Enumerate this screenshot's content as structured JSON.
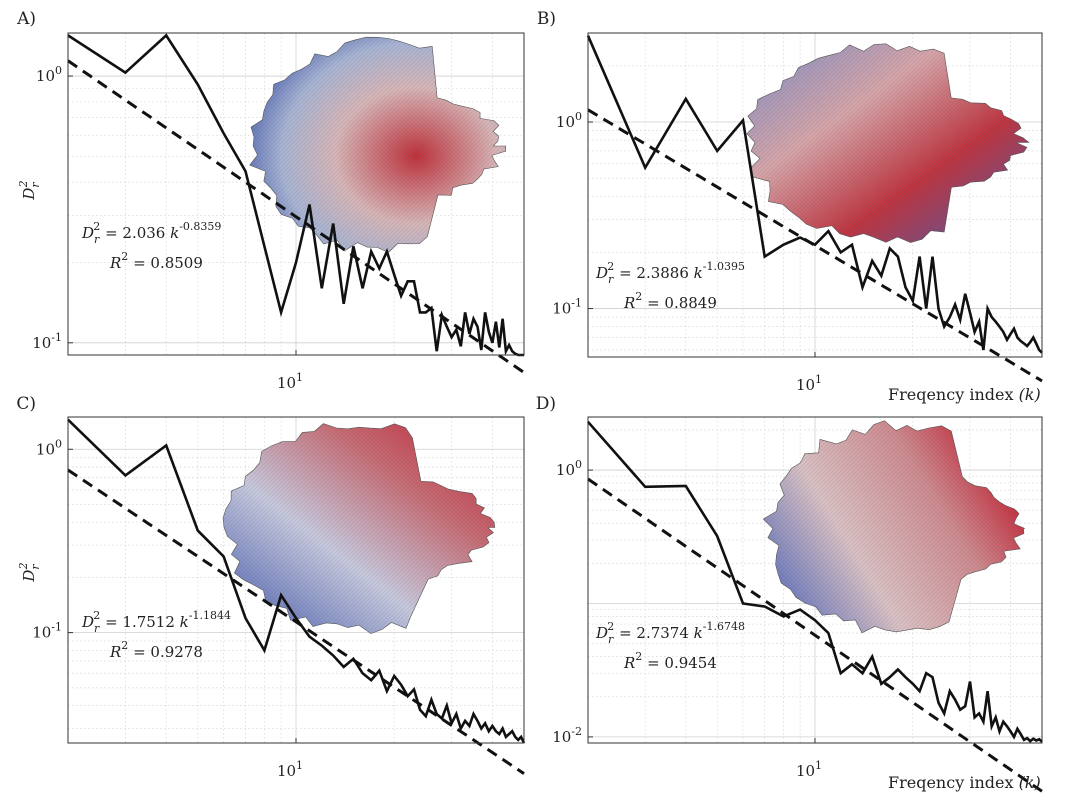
{
  "chart_data": [
    {
      "panel": "A)",
      "type": "line",
      "ylabel": "D_r^2",
      "xlabel": "",
      "xscale": "log",
      "yscale": "log",
      "xlim": [
        2,
        50
      ],
      "ylim": [
        0.09,
        1.45
      ],
      "xticks": [
        {
          "value": 10,
          "base": "10",
          "exp": "1"
        }
      ],
      "yticks": [
        {
          "value": 1,
          "base": "10",
          "exp": "0"
        },
        {
          "value": 0.1,
          "base": "10",
          "exp": "-1"
        }
      ],
      "grid": true,
      "series": [
        {
          "style": "solid",
          "x": [
            2,
            3,
            4,
            5,
            6,
            7,
            8,
            9,
            10,
            11,
            12,
            13,
            14,
            15,
            16,
            17,
            18,
            19,
            20,
            21,
            22,
            23,
            24,
            25,
            26,
            27,
            28,
            29,
            30,
            31,
            32,
            33,
            34,
            35,
            36,
            37,
            38,
            39,
            40,
            41,
            42,
            43,
            44,
            45,
            46,
            47,
            48,
            49,
            50
          ],
          "y": [
            1.42,
            1.03,
            1.42,
            0.93,
            0.61,
            0.44,
            0.23,
            0.13,
            0.2,
            0.33,
            0.16,
            0.28,
            0.14,
            0.23,
            0.16,
            0.22,
            0.19,
            0.22,
            0.18,
            0.15,
            0.17,
            0.17,
            0.13,
            0.13,
            0.135,
            0.093,
            0.127,
            0.115,
            0.105,
            0.112,
            0.097,
            0.13,
            0.108,
            0.123,
            0.115,
            0.094,
            0.13,
            0.11,
            0.1,
            0.12,
            0.096,
            0.123,
            0.093,
            0.098,
            0.093,
            0.091,
            0.088,
            0.086,
            0.09
          ]
        },
        {
          "style": "dashed",
          "fit": true,
          "a": 2.036,
          "b": -0.8359
        }
      ],
      "annotation": {
        "lhs": "D",
        "sub": "r",
        "sup": "2",
        "coef": "= 2.036",
        "var": "k",
        "exp": "-0.8359",
        "r2_label": "R",
        "r2_sup": "2",
        "r2_value": "= 0.8509"
      }
    },
    {
      "panel": "B)",
      "type": "line",
      "ylabel": "",
      "xlabel": "Freqency index",
      "xlabel_var": "(k)",
      "xscale": "log",
      "yscale": "log",
      "xlim": [
        2,
        50
      ],
      "ylim": [
        0.055,
        3.0
      ],
      "xticks": [
        {
          "value": 10,
          "base": "10",
          "exp": "1"
        }
      ],
      "yticks": [
        {
          "value": 1,
          "base": "10",
          "exp": "0"
        },
        {
          "value": 0.1,
          "base": "10",
          "exp": "-1"
        }
      ],
      "grid": true,
      "series": [
        {
          "style": "solid",
          "x": [
            2,
            3,
            4,
            5,
            6,
            7,
            8,
            9,
            10,
            11,
            12,
            13,
            14,
            15,
            16,
            17,
            18,
            19,
            20,
            21,
            22,
            23,
            24,
            25,
            26,
            27,
            28,
            29,
            30,
            31,
            32,
            33,
            34,
            35,
            36,
            37,
            38,
            39,
            40,
            41,
            42,
            43,
            44,
            45,
            46,
            47,
            48,
            49,
            50
          ],
          "y": [
            2.9,
            0.57,
            1.33,
            0.7,
            1.02,
            0.19,
            0.22,
            0.24,
            0.22,
            0.26,
            0.2,
            0.22,
            0.13,
            0.18,
            0.15,
            0.21,
            0.19,
            0.13,
            0.11,
            0.19,
            0.1,
            0.19,
            0.1,
            0.08,
            0.09,
            0.105,
            0.087,
            0.12,
            0.095,
            0.075,
            0.085,
            0.06,
            0.1,
            0.09,
            0.085,
            0.08,
            0.075,
            0.068,
            0.073,
            0.078,
            0.07,
            0.067,
            0.065,
            0.063,
            0.066,
            0.07,
            0.065,
            0.06,
            0.058
          ]
        },
        {
          "style": "dashed",
          "fit": true,
          "a": 2.3886,
          "b": -1.0395
        }
      ],
      "annotation": {
        "lhs": "D",
        "sub": "r",
        "sup": "2",
        "coef": "= 2.3886",
        "var": "k",
        "exp": "-1.0395",
        "r2_label": "R",
        "r2_sup": "2",
        "r2_value": "= 0.8849"
      }
    },
    {
      "panel": "C)",
      "type": "line",
      "ylabel": "D_r^2",
      "xlabel": "",
      "xscale": "log",
      "yscale": "log",
      "xlim": [
        2,
        50
      ],
      "ylim": [
        0.025,
        1.5
      ],
      "xticks": [
        {
          "value": 10,
          "base": "10",
          "exp": "1"
        }
      ],
      "yticks": [
        {
          "value": 1,
          "base": "10",
          "exp": "0"
        },
        {
          "value": 0.1,
          "base": "10",
          "exp": "-1"
        }
      ],
      "grid": true,
      "series": [
        {
          "style": "solid",
          "x": [
            2,
            3,
            4,
            5,
            6,
            7,
            8,
            9,
            10,
            11,
            12,
            13,
            14,
            15,
            16,
            17,
            18,
            19,
            20,
            21,
            22,
            23,
            24,
            25,
            26,
            27,
            28,
            29,
            30,
            31,
            32,
            33,
            34,
            35,
            36,
            37,
            38,
            39,
            40,
            41,
            42,
            43,
            44,
            45,
            46,
            47,
            48,
            49,
            50
          ],
          "y": [
            1.45,
            0.72,
            1.05,
            0.36,
            0.26,
            0.12,
            0.08,
            0.16,
            0.12,
            0.095,
            0.085,
            0.075,
            0.065,
            0.072,
            0.06,
            0.055,
            0.062,
            0.048,
            0.058,
            0.052,
            0.045,
            0.049,
            0.038,
            0.035,
            0.043,
            0.036,
            0.034,
            0.04,
            0.032,
            0.036,
            0.03,
            0.033,
            0.031,
            0.036,
            0.033,
            0.03,
            0.032,
            0.029,
            0.031,
            0.029,
            0.028,
            0.03,
            0.027,
            0.028,
            0.029,
            0.027,
            0.026,
            0.027,
            0.025
          ]
        },
        {
          "style": "dashed",
          "fit": true,
          "a": 1.7512,
          "b": -1.1844
        }
      ],
      "annotation": {
        "lhs": "D",
        "sub": "r",
        "sup": "2",
        "coef": "= 1.7512",
        "var": "k",
        "exp": "-1.1844",
        "r2_label": "R",
        "r2_sup": "2",
        "r2_value": "= 0.9278"
      }
    },
    {
      "panel": "D)",
      "type": "line",
      "ylabel": "",
      "xlabel": "Freqency index",
      "xlabel_var": "(k)",
      "xscale": "log",
      "yscale": "log",
      "xlim": [
        2,
        50
      ],
      "ylim": [
        0.009,
        2.5
      ],
      "xticks": [
        {
          "value": 10,
          "base": "10",
          "exp": "1"
        }
      ],
      "yticks": [
        {
          "value": 1,
          "base": "10",
          "exp": "0"
        },
        {
          "value": 0.01,
          "base": "10",
          "exp": "-2"
        }
      ],
      "grid": true,
      "series": [
        {
          "style": "solid",
          "x": [
            2,
            3,
            4,
            5,
            6,
            7,
            8,
            9,
            10,
            11,
            12,
            13,
            14,
            15,
            16,
            17,
            18,
            19,
            20,
            21,
            22,
            23,
            24,
            25,
            26,
            27,
            28,
            29,
            30,
            31,
            32,
            33,
            34,
            35,
            36,
            37,
            38,
            39,
            40,
            41,
            42,
            43,
            44,
            45,
            46,
            47,
            48,
            49,
            50
          ],
          "y": [
            2.3,
            0.75,
            0.76,
            0.32,
            0.1,
            0.095,
            0.08,
            0.09,
            0.075,
            0.06,
            0.03,
            0.035,
            0.03,
            0.04,
            0.025,
            0.028,
            0.032,
            0.028,
            0.025,
            0.022,
            0.03,
            0.028,
            0.018,
            0.015,
            0.022,
            0.019,
            0.016,
            0.017,
            0.026,
            0.014,
            0.015,
            0.013,
            0.022,
            0.012,
            0.014,
            0.011,
            0.013,
            0.012,
            0.011,
            0.01,
            0.0115,
            0.0105,
            0.0095,
            0.0098,
            0.0093,
            0.0097,
            0.0094,
            0.0096,
            0.0092
          ]
        },
        {
          "style": "dashed",
          "fit": true,
          "a": 2.7374,
          "b": -1.6748
        }
      ],
      "annotation": {
        "lhs": "D",
        "sub": "r",
        "sup": "2",
        "coef": "= 2.7374",
        "var": "k",
        "exp": "-1.6748",
        "r2_label": "R",
        "r2_sup": "2",
        "r2_value": "= 0.9454"
      }
    }
  ]
}
